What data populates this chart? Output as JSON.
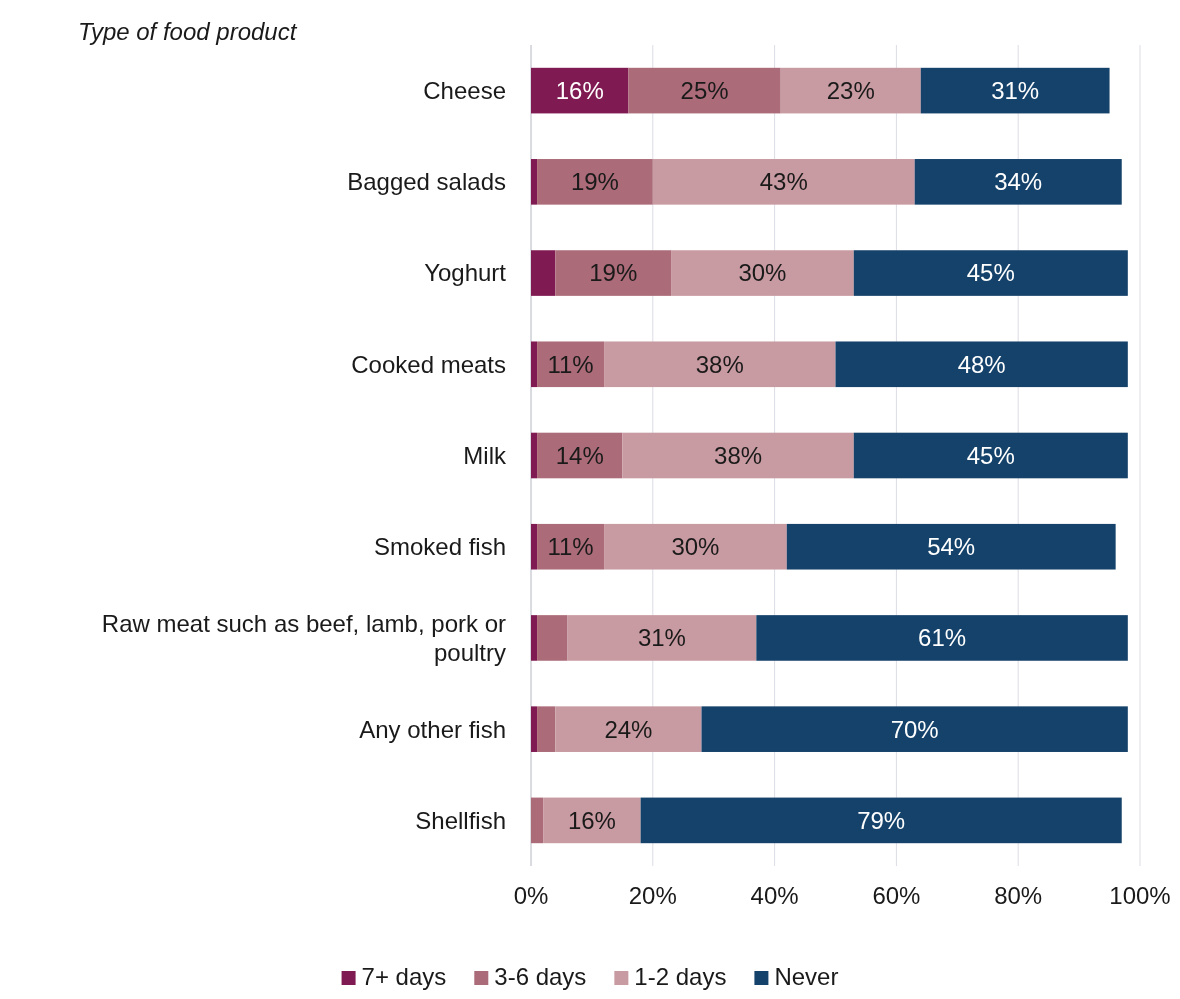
{
  "chart_data": {
    "type": "bar",
    "orientation": "horizontal",
    "stacked": true,
    "ylabel": "Type of food product",
    "categories": [
      "Cheese",
      "Bagged salads",
      "Yoghurt",
      "Cooked meats",
      "Milk",
      "Smoked fish",
      "Raw meat such as beef, lamb, pork or poultry",
      "Any other fish",
      "Shellfish"
    ],
    "series": [
      {
        "name": "7+ days",
        "color": "#7f1a52",
        "values": [
          16,
          1,
          4,
          1,
          1,
          1,
          1,
          1,
          0
        ],
        "value_labels": [
          "16%",
          null,
          null,
          null,
          null,
          null,
          null,
          null,
          null
        ]
      },
      {
        "name": "3-6 days",
        "color": "#ab6b78",
        "values": [
          25,
          19,
          19,
          11,
          14,
          11,
          5,
          3,
          2
        ],
        "value_labels": [
          "25%",
          "19%",
          "19%",
          "11%",
          "14%",
          "11%",
          null,
          null,
          null
        ]
      },
      {
        "name": "1-2 days",
        "color": "#c89aa1",
        "values": [
          23,
          43,
          30,
          38,
          38,
          30,
          31,
          24,
          16
        ],
        "value_labels": [
          "23%",
          "43%",
          "30%",
          "38%",
          "38%",
          "30%",
          "31%",
          "24%",
          "16%"
        ]
      },
      {
        "name": "Never",
        "color": "#15426a",
        "values": [
          31,
          34,
          45,
          48,
          45,
          54,
          61,
          70,
          79
        ],
        "value_labels": [
          "31%",
          "34%",
          "45%",
          "48%",
          "45%",
          "54%",
          "61%",
          "70%",
          "79%"
        ]
      }
    ],
    "xlim": [
      0,
      100
    ],
    "xticks": [
      {
        "value": 0,
        "label": "0%"
      },
      {
        "value": 20,
        "label": "20%"
      },
      {
        "value": 40,
        "label": "40%"
      },
      {
        "value": 60,
        "label": "60%"
      },
      {
        "value": 80,
        "label": "80%"
      },
      {
        "value": 100,
        "label": "100%"
      }
    ],
    "grid": "x",
    "legend": "bottom"
  }
}
